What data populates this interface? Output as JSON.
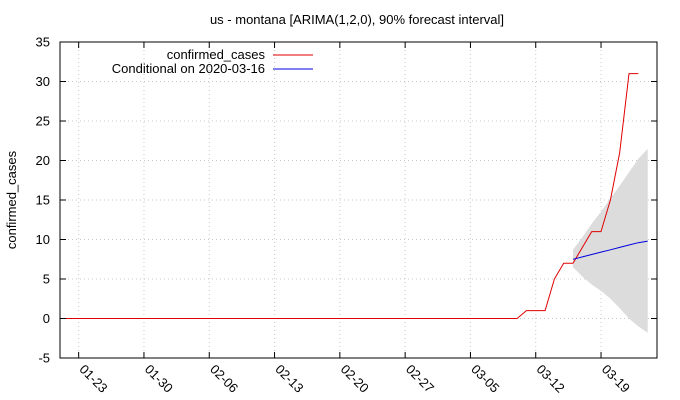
{
  "chart_data": {
    "type": "line",
    "title": "us - montana [ARIMA(1,2,0), 90% forecast interval]",
    "xlabel": "",
    "ylabel": "confirmed_cases",
    "xlim": [
      0,
      64
    ],
    "ylim": [
      -5,
      35
    ],
    "yticks": [
      -5,
      0,
      5,
      10,
      15,
      20,
      25,
      30,
      35
    ],
    "xticks": [
      {
        "x": 2,
        "label": "01-23"
      },
      {
        "x": 9,
        "label": "01-30"
      },
      {
        "x": 16,
        "label": "02-06"
      },
      {
        "x": 23,
        "label": "02-13"
      },
      {
        "x": 30,
        "label": "02-20"
      },
      {
        "x": 37,
        "label": "02-27"
      },
      {
        "x": 44,
        "label": "03-05"
      },
      {
        "x": 51,
        "label": "03-12"
      },
      {
        "x": 58,
        "label": "03-19"
      }
    ],
    "grid": true,
    "legend_position": "top-left",
    "series": [
      {
        "name": "confirmed_cases",
        "color": "#e00000",
        "x": [
          0,
          1,
          2,
          3,
          4,
          5,
          6,
          7,
          8,
          9,
          10,
          11,
          12,
          13,
          14,
          15,
          16,
          17,
          18,
          19,
          20,
          21,
          22,
          23,
          24,
          25,
          26,
          27,
          28,
          29,
          30,
          31,
          32,
          33,
          34,
          35,
          36,
          37,
          38,
          39,
          40,
          41,
          42,
          43,
          44,
          45,
          46,
          47,
          48,
          49,
          50,
          51,
          52,
          53,
          54,
          55,
          56,
          57,
          58,
          59,
          60,
          61,
          62
        ],
        "values": [
          0,
          0,
          0,
          0,
          0,
          0,
          0,
          0,
          0,
          0,
          0,
          0,
          0,
          0,
          0,
          0,
          0,
          0,
          0,
          0,
          0,
          0,
          0,
          0,
          0,
          0,
          0,
          0,
          0,
          0,
          0,
          0,
          0,
          0,
          0,
          0,
          0,
          0,
          0,
          0,
          0,
          0,
          0,
          0,
          0,
          0,
          0,
          0,
          0,
          0,
          1,
          1,
          1,
          5,
          7,
          7,
          9,
          11,
          11,
          15,
          21,
          31,
          31
        ]
      },
      {
        "name": "Conditional on 2020-03-16",
        "color": "#0000e0",
        "x": [
          55,
          56,
          57,
          58,
          59,
          60,
          61,
          62,
          63
        ],
        "values": [
          7.5,
          7.8,
          8.1,
          8.4,
          8.7,
          9.0,
          9.3,
          9.6,
          9.8
        ]
      }
    ],
    "interval": {
      "color": "#dcdcdc",
      "x": [
        55,
        56,
        57,
        58,
        59,
        60,
        61,
        62,
        63
      ],
      "lower": [
        6.5,
        5.3,
        4.3,
        3.5,
        2.5,
        1.3,
        0.0,
        -1.0,
        -1.8
      ],
      "upper": [
        8.7,
        10.3,
        12.0,
        13.5,
        15.2,
        16.8,
        18.5,
        20.2,
        21.5
      ]
    }
  }
}
